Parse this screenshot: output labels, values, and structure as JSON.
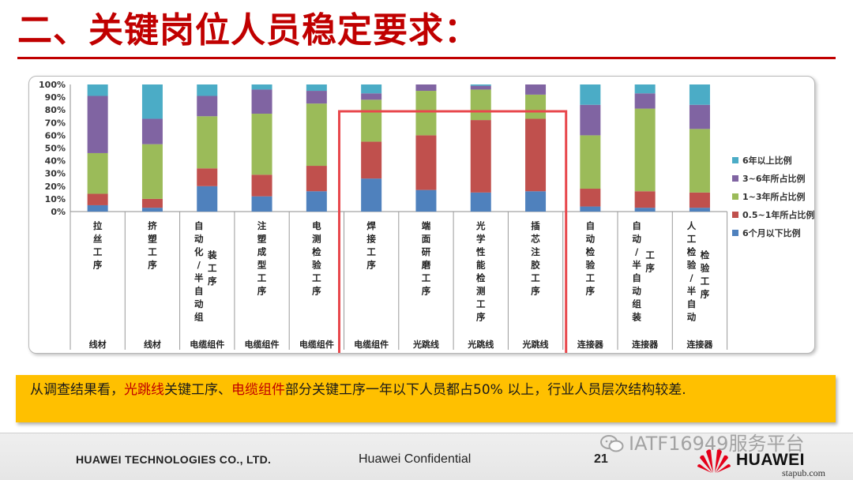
{
  "slide": {
    "title": "二、关键岗位人员稳定要求：",
    "conclusion": {
      "part1": "从调查结果看，",
      "hl1": "光跳线",
      "part2": "关键工序、",
      "hl2": "电缆组件",
      "part3": "部分关键工序一年以下人员都占50% 以上，行业人员层次结构较差."
    }
  },
  "footer": {
    "company": "HUAWEI TECHNOLOGIES CO., LTD.",
    "confidential": "Huawei Confidential",
    "page": "21",
    "brand": "HUAWEI",
    "watermark": "IATF16949服务平台",
    "site": "stapub.com"
  },
  "colors": {
    "title": "#c00000",
    "lt6m": "#4f81bd",
    "m6_1y": "#c0504d",
    "y1_3": "#9bbb59",
    "y3_6": "#8064a2",
    "gt6": "#4bacc6",
    "highlight": "#e8474c",
    "conclusion_bg": "#ffc000"
  },
  "chart_data": {
    "type": "bar",
    "stacked": true,
    "percent": true,
    "ylim": [
      0,
      100
    ],
    "yticks": [
      "0%",
      "10%",
      "20%",
      "30%",
      "40%",
      "50%",
      "60%",
      "70%",
      "80%",
      "90%",
      "100%"
    ],
    "categories": [
      {
        "process": [
          "拉丝工序"
        ],
        "group": "线材"
      },
      {
        "process": [
          "挤塑工序"
        ],
        "group": "线材"
      },
      {
        "process": [
          "自动化/半自动组",
          "装工序"
        ],
        "group": "电缆组件"
      },
      {
        "process": [
          "注塑成型工序"
        ],
        "group": "电缆组件"
      },
      {
        "process": [
          "电测检验工序"
        ],
        "group": "电缆组件"
      },
      {
        "process": [
          "焊接工序"
        ],
        "group": "电缆组件"
      },
      {
        "process": [
          "端面研磨工序"
        ],
        "group": "光跳线"
      },
      {
        "process": [
          "光学性能检测工序"
        ],
        "group": "光跳线"
      },
      {
        "process": [
          "插芯注胶工序"
        ],
        "group": "光跳线"
      },
      {
        "process": [
          "自动检验工序"
        ],
        "group": "连接器"
      },
      {
        "process": [
          "自动/半自动组装",
          "工序"
        ],
        "group": "连接器"
      },
      {
        "process": [
          "人工检验/半自动",
          "检验工序"
        ],
        "group": "连接器"
      }
    ],
    "series": [
      {
        "name": "6个月以下比例",
        "color": "#4f81bd",
        "values": [
          5,
          3,
          20,
          12,
          16,
          26,
          17,
          15,
          16,
          4,
          3,
          3
        ]
      },
      {
        "name": "0.5~1年所占比例",
        "color": "#c0504d",
        "values": [
          9,
          7,
          14,
          17,
          20,
          29,
          43,
          57,
          57,
          14,
          13,
          12
        ]
      },
      {
        "name": "1~3年所占比例",
        "color": "#9bbb59",
        "values": [
          32,
          43,
          41,
          48,
          49,
          33,
          35,
          24,
          19,
          42,
          65,
          50
        ]
      },
      {
        "name": "3~6年所占比例",
        "color": "#8064a2",
        "values": [
          45,
          20,
          16,
          19,
          10,
          5,
          5,
          3,
          8,
          24,
          12,
          19
        ]
      },
      {
        "name": "6年以上比例",
        "color": "#4bacc6",
        "values": [
          9,
          27,
          9,
          4,
          5,
          7,
          0,
          1,
          0,
          16,
          7,
          16
        ]
      }
    ],
    "legend_order": [
      "6年以上比例",
      "3~6年所占比例",
      "1~3年所占比例",
      "0.5~1年所占比例",
      "6个月以下比例"
    ],
    "legend_position": "right",
    "highlighted_categories": [
      5,
      6,
      7,
      8
    ]
  }
}
